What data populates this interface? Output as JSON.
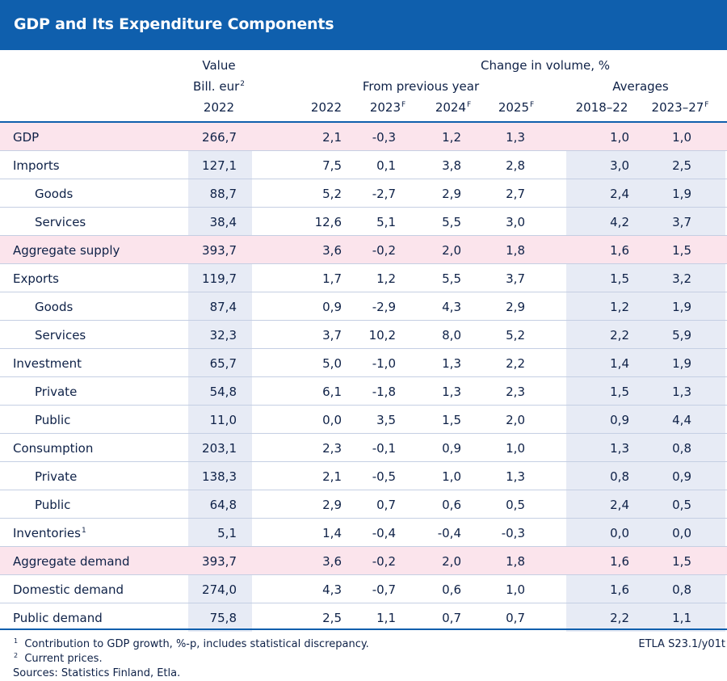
{
  "title": "GDP and Its Expenditure Components",
  "header": {
    "value_label": "Value",
    "value_unit": "Bill. eur",
    "value_unit_sup": "2",
    "value_year": "2022",
    "change_label": "Change in volume, %",
    "prev_year_label": "From previous year",
    "averages_label": "Averages",
    "columns": [
      {
        "label": "2022",
        "sup": ""
      },
      {
        "label": "2023",
        "sup": "F"
      },
      {
        "label": "2024",
        "sup": "F"
      },
      {
        "label": "2025",
        "sup": "F"
      },
      {
        "label": "2018–22",
        "sup": ""
      },
      {
        "label": "2023–27",
        "sup": "F"
      }
    ]
  },
  "chart_data": {
    "type": "table",
    "title": "GDP and Its Expenditure Components",
    "columns": [
      "Value Bill. eur 2022",
      "2022",
      "2023F",
      "2024F",
      "2025F",
      "2018–22",
      "2023–27F"
    ],
    "rows": [
      {
        "label": "GDP",
        "sup": "",
        "indent": false,
        "highlight": true,
        "values": [
          "266,7",
          "2,1",
          "-0,3",
          "1,2",
          "1,3",
          "1,0",
          "1,0"
        ]
      },
      {
        "label": "Imports",
        "sup": "",
        "indent": false,
        "highlight": false,
        "values": [
          "127,1",
          "7,5",
          "0,1",
          "3,8",
          "2,8",
          "3,0",
          "2,5"
        ]
      },
      {
        "label": "Goods",
        "sup": "",
        "indent": true,
        "highlight": false,
        "values": [
          "88,7",
          "5,2",
          "-2,7",
          "2,9",
          "2,7",
          "2,4",
          "1,9"
        ]
      },
      {
        "label": "Services",
        "sup": "",
        "indent": true,
        "highlight": false,
        "values": [
          "38,4",
          "12,6",
          "5,1",
          "5,5",
          "3,0",
          "4,2",
          "3,7"
        ]
      },
      {
        "label": "Aggregate supply",
        "sup": "",
        "indent": false,
        "highlight": true,
        "values": [
          "393,7",
          "3,6",
          "-0,2",
          "2,0",
          "1,8",
          "1,6",
          "1,5"
        ]
      },
      {
        "label": "Exports",
        "sup": "",
        "indent": false,
        "highlight": false,
        "values": [
          "119,7",
          "1,7",
          "1,2",
          "5,5",
          "3,7",
          "1,5",
          "3,2"
        ]
      },
      {
        "label": "Goods",
        "sup": "",
        "indent": true,
        "highlight": false,
        "values": [
          "87,4",
          "0,9",
          "-2,9",
          "4,3",
          "2,9",
          "1,2",
          "1,9"
        ]
      },
      {
        "label": "Services",
        "sup": "",
        "indent": true,
        "highlight": false,
        "values": [
          "32,3",
          "3,7",
          "10,2",
          "8,0",
          "5,2",
          "2,2",
          "5,9"
        ]
      },
      {
        "label": "Investment",
        "sup": "",
        "indent": false,
        "highlight": false,
        "values": [
          "65,7",
          "5,0",
          "-1,0",
          "1,3",
          "2,2",
          "1,4",
          "1,9"
        ]
      },
      {
        "label": "Private",
        "sup": "",
        "indent": true,
        "highlight": false,
        "values": [
          "54,8",
          "6,1",
          "-1,8",
          "1,3",
          "2,3",
          "1,5",
          "1,3"
        ]
      },
      {
        "label": "Public",
        "sup": "",
        "indent": true,
        "highlight": false,
        "values": [
          "11,0",
          "0,0",
          "3,5",
          "1,5",
          "2,0",
          "0,9",
          "4,4"
        ]
      },
      {
        "label": "Consumption",
        "sup": "",
        "indent": false,
        "highlight": false,
        "values": [
          "203,1",
          "2,3",
          "-0,1",
          "0,9",
          "1,0",
          "1,3",
          "0,8"
        ]
      },
      {
        "label": "Private",
        "sup": "",
        "indent": true,
        "highlight": false,
        "values": [
          "138,3",
          "2,1",
          "-0,5",
          "1,0",
          "1,3",
          "0,8",
          "0,9"
        ]
      },
      {
        "label": "Public",
        "sup": "",
        "indent": true,
        "highlight": false,
        "values": [
          "64,8",
          "2,9",
          "0,7",
          "0,6",
          "0,5",
          "2,4",
          "0,5"
        ]
      },
      {
        "label": "Inventories",
        "sup": "1",
        "indent": false,
        "highlight": false,
        "values": [
          "5,1",
          "1,4",
          "-0,4",
          "-0,4",
          "-0,3",
          "0,0",
          "0,0"
        ]
      },
      {
        "label": "Aggregate demand",
        "sup": "",
        "indent": false,
        "highlight": true,
        "values": [
          "393,7",
          "3,6",
          "-0,2",
          "2,0",
          "1,8",
          "1,6",
          "1,5"
        ]
      },
      {
        "label": "Domestic demand",
        "sup": "",
        "indent": false,
        "highlight": false,
        "values": [
          "274,0",
          "4,3",
          "-0,7",
          "0,6",
          "1,0",
          "1,6",
          "0,8"
        ]
      },
      {
        "label": "Public demand",
        "sup": "",
        "indent": false,
        "highlight": false,
        "values": [
          "75,8",
          "2,5",
          "1,1",
          "0,7",
          "0,7",
          "2,2",
          "1,1"
        ]
      }
    ]
  },
  "footnotes": [
    {
      "mark": "1",
      "text": "Contribution to GDP growth, %-p, includes statistical discrepancy."
    },
    {
      "mark": "2",
      "text": "Current prices."
    }
  ],
  "sources": "Sources: Statistics Finland, Etla.",
  "code": "ETLA S23.1/y01t",
  "colors": {
    "title_bar": "#0f5fad",
    "highlight_row": "#fbe4ec",
    "shaded_column": "#e7ebf5",
    "text": "#0e2147"
  }
}
